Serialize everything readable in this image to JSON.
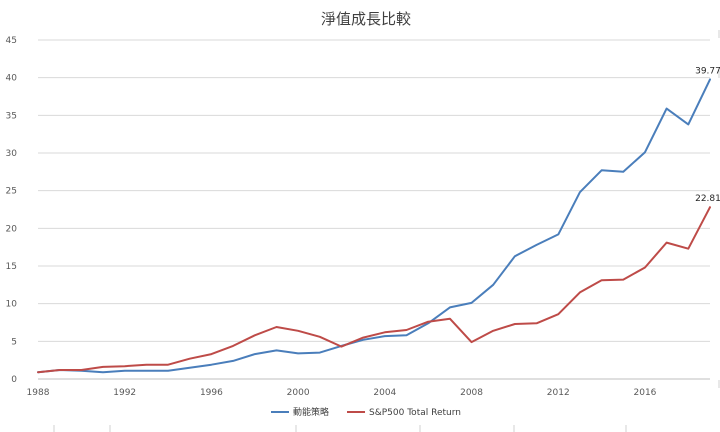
{
  "chart_data": {
    "type": "line",
    "title": "淨值成長比較",
    "xlabel": "",
    "ylabel": "",
    "ylim": [
      0,
      45
    ],
    "yticks": [
      0,
      5,
      10,
      15,
      20,
      25,
      30,
      35,
      40,
      45
    ],
    "xlim": [
      1988,
      2019
    ],
    "xticks": [
      1988,
      1992,
      1996,
      2000,
      2004,
      2008,
      2012,
      2016
    ],
    "grid": true,
    "legend_position": "bottom",
    "x": [
      1988,
      1989,
      1990,
      1991,
      1992,
      1993,
      1994,
      1995,
      1996,
      1997,
      1998,
      1999,
      2000,
      2001,
      2002,
      2003,
      2004,
      2005,
      2006,
      2007,
      2008,
      2009,
      2010,
      2011,
      2012,
      2013,
      2014,
      2015,
      2016,
      2017,
      2018,
      2019
    ],
    "series": [
      {
        "name": "動能策略",
        "color": "#4a7ebb",
        "values": [
          0.9,
          1.2,
          1.1,
          0.9,
          1.1,
          1.1,
          1.1,
          1.5,
          1.9,
          2.4,
          3.3,
          3.8,
          3.4,
          3.5,
          4.4,
          5.2,
          5.7,
          5.8,
          7.4,
          9.5,
          10.1,
          12.5,
          16.3,
          17.8,
          19.2,
          24.8,
          27.7,
          27.5,
          30.1,
          35.9,
          33.8,
          39.77
        ],
        "end_label": "39.77"
      },
      {
        "name": "S&P500 Total Return",
        "color": "#be4b48",
        "values": [
          0.9,
          1.2,
          1.2,
          1.6,
          1.7,
          1.9,
          1.9,
          2.7,
          3.3,
          4.4,
          5.8,
          6.9,
          6.4,
          5.6,
          4.3,
          5.5,
          6.2,
          6.5,
          7.6,
          8.0,
          4.9,
          6.4,
          7.3,
          7.4,
          8.6,
          11.5,
          13.1,
          13.2,
          14.8,
          18.1,
          17.3,
          22.81
        ],
        "end_label": "22.81"
      }
    ]
  }
}
